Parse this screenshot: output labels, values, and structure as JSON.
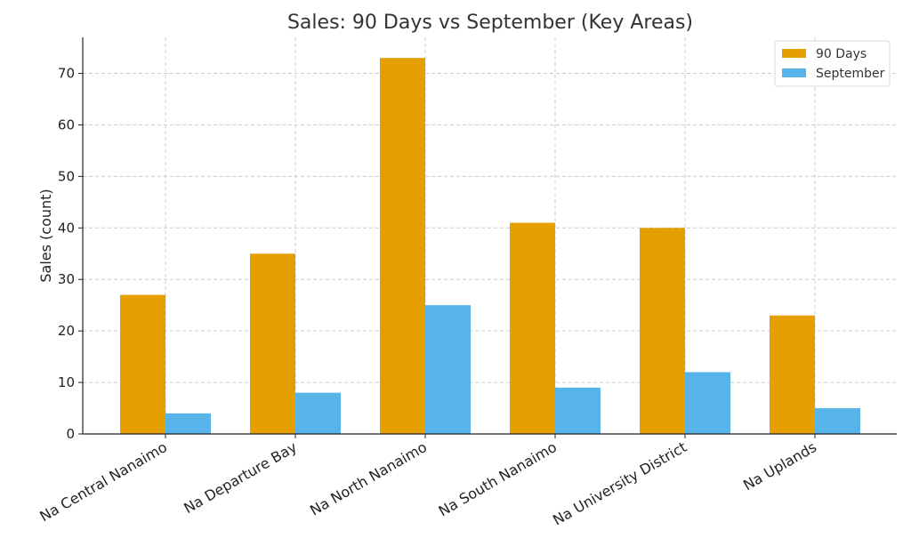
{
  "chart_data": {
    "type": "bar",
    "title": "Sales: 90 Days vs September (Key Areas)",
    "xlabel": "",
    "ylabel": "Sales (count)",
    "ylim": [
      0,
      77
    ],
    "yticks": [
      0,
      10,
      20,
      30,
      40,
      50,
      60,
      70
    ],
    "grid": true,
    "legend_position": "top-right",
    "categories": [
      "Na Central Nanaimo",
      "Na Departure Bay",
      "Na North Nanaimo",
      "Na South Nanaimo",
      "Na University District",
      "Na Uplands"
    ],
    "series": [
      {
        "name": "90 Days",
        "color": "#E69F00",
        "values": [
          27,
          35,
          73,
          41,
          40,
          23
        ]
      },
      {
        "name": "September",
        "color": "#56B4E9",
        "values": [
          4,
          8,
          25,
          9,
          12,
          5
        ]
      }
    ]
  }
}
